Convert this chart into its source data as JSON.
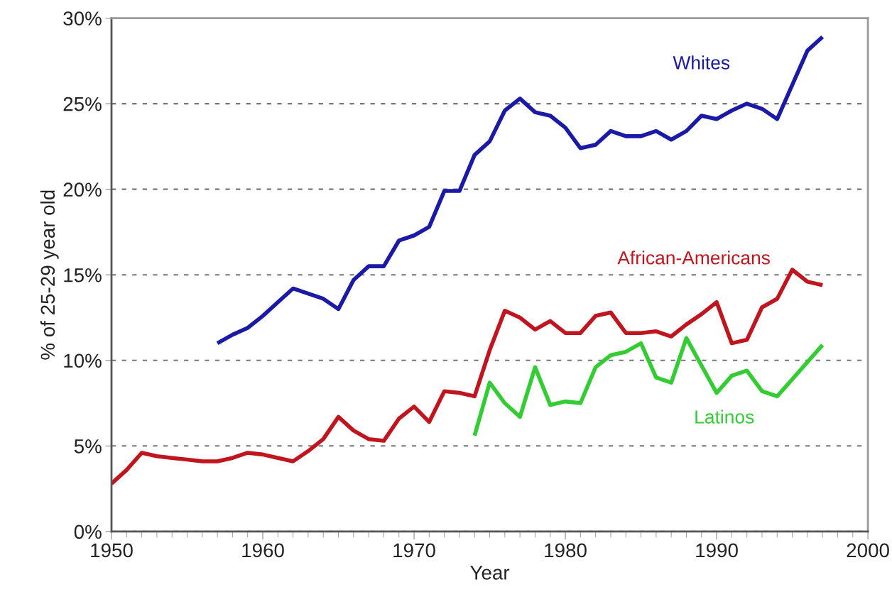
{
  "chart_data": {
    "type": "line",
    "xlabel": "Year",
    "ylabel": "% of 25-29 year old",
    "xlim": [
      1950,
      2000
    ],
    "xticks": [
      1950,
      1960,
      1970,
      1980,
      1990,
      2000
    ],
    "ylim": [
      0,
      30
    ],
    "yticks": [
      {
        "value": 0,
        "label": "0%"
      },
      {
        "value": 5,
        "label": "5%"
      },
      {
        "value": 10,
        "label": "10%"
      },
      {
        "value": 15,
        "label": "15%"
      },
      {
        "value": 20,
        "label": "20%"
      },
      {
        "value": 25,
        "label": "25%"
      },
      {
        "value": 30,
        "label": "30%"
      }
    ],
    "grid": "y",
    "legend": false,
    "marker": "none",
    "line_style": "solid",
    "series": [
      {
        "name": "Whites",
        "color": "#1a1aa6",
        "x": [
          1957,
          1958,
          1959,
          1960,
          1961,
          1962,
          1963,
          1964,
          1965,
          1966,
          1967,
          1968,
          1969,
          1970,
          1971,
          1972,
          1973,
          1974,
          1975,
          1976,
          1977,
          1978,
          1979,
          1980,
          1981,
          1982,
          1983,
          1984,
          1985,
          1986,
          1987,
          1988,
          1989,
          1990,
          1991,
          1992,
          1993,
          1994,
          1995,
          1996,
          1997
        ],
        "values": [
          11.0,
          11.5,
          11.9,
          12.6,
          13.4,
          14.2,
          13.9,
          13.6,
          13.0,
          14.7,
          15.5,
          15.5,
          17.0,
          17.3,
          17.8,
          19.9,
          19.9,
          22.0,
          22.8,
          24.6,
          25.3,
          24.5,
          24.3,
          23.6,
          22.4,
          22.6,
          23.4,
          23.1,
          23.1,
          23.4,
          22.9,
          23.4,
          24.3,
          24.1,
          24.6,
          25.0,
          24.7,
          24.1,
          26.1,
          28.1,
          28.9
        ]
      },
      {
        "name": "African-Americans",
        "color": "#c0141e",
        "x": [
          1950,
          1951,
          1952,
          1953,
          1954,
          1955,
          1956,
          1957,
          1958,
          1959,
          1960,
          1961,
          1962,
          1963,
          1964,
          1965,
          1966,
          1967,
          1968,
          1969,
          1970,
          1971,
          1972,
          1973,
          1974,
          1975,
          1976,
          1977,
          1978,
          1979,
          1980,
          1981,
          1982,
          1983,
          1984,
          1985,
          1986,
          1987,
          1988,
          1989,
          1990,
          1991,
          1992,
          1993,
          1994,
          1995,
          1996,
          1997
        ],
        "values": [
          2.8,
          3.6,
          4.6,
          4.4,
          4.3,
          4.2,
          4.1,
          4.1,
          4.3,
          4.6,
          4.5,
          4.3,
          4.1,
          4.7,
          5.4,
          6.7,
          5.9,
          5.4,
          5.3,
          6.6,
          7.3,
          6.4,
          8.2,
          8.1,
          7.9,
          10.6,
          12.9,
          12.5,
          11.8,
          12.3,
          11.6,
          11.6,
          12.6,
          12.8,
          11.6,
          11.6,
          11.7,
          11.4,
          12.1,
          12.7,
          13.4,
          11.0,
          11.2,
          13.1,
          13.6,
          15.3,
          14.6,
          14.4
        ]
      },
      {
        "name": "Latinos",
        "color": "#33cc33",
        "x": [
          1974,
          1975,
          1976,
          1977,
          1978,
          1979,
          1980,
          1981,
          1982,
          1983,
          1984,
          1985,
          1986,
          1987,
          1988,
          1989,
          1990,
          1991,
          1992,
          1993,
          1994,
          1995,
          1996,
          1997
        ],
        "values": [
          5.6,
          8.7,
          7.5,
          6.7,
          9.6,
          7.4,
          7.6,
          7.5,
          9.6,
          10.3,
          10.5,
          11.0,
          9.0,
          8.7,
          11.3,
          9.7,
          8.1,
          9.1,
          9.4,
          8.2,
          7.9,
          8.9,
          9.9,
          10.9
        ]
      }
    ]
  }
}
